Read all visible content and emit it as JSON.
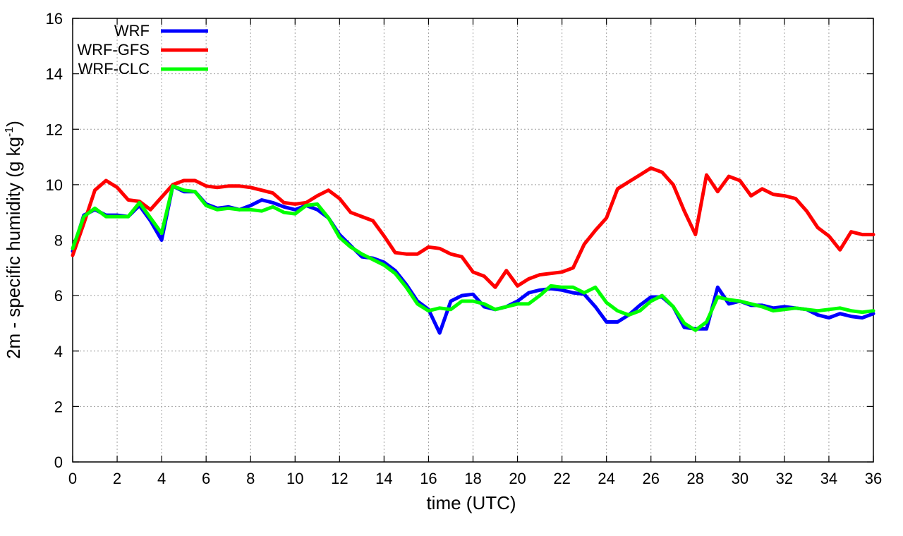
{
  "chart_data": {
    "type": "line",
    "xlabel": "time (UTC)",
    "ylabel_main": "2m - specific humidity (g kg",
    "ylabel_sup": "-1",
    "ylabel_close": ")",
    "xlim": [
      0,
      36
    ],
    "ylim": [
      0,
      16
    ],
    "xticks": [
      0,
      2,
      4,
      6,
      8,
      10,
      12,
      14,
      16,
      18,
      20,
      22,
      24,
      26,
      28,
      30,
      32,
      34,
      36
    ],
    "yticks": [
      0,
      2,
      4,
      6,
      8,
      10,
      12,
      14,
      16
    ],
    "grid": true,
    "legend_position": "top-left",
    "series": [
      {
        "name": "WRF",
        "color": "#0000ff",
        "x": [
          0,
          0.5,
          1,
          1.5,
          2,
          2.5,
          3,
          3.5,
          4,
          4.5,
          5,
          5.5,
          6,
          6.5,
          7,
          7.5,
          8,
          8.5,
          9,
          9.5,
          10,
          10.5,
          11,
          11.5,
          12,
          12.5,
          13,
          13.5,
          14,
          14.5,
          15,
          15.5,
          16,
          16.5,
          17,
          17.5,
          18,
          18.5,
          19,
          19.5,
          20,
          20.5,
          21,
          21.5,
          22,
          22.5,
          23,
          23.5,
          24,
          24.5,
          25,
          25.5,
          26,
          26.5,
          27,
          27.5,
          28,
          28.5,
          29,
          29.5,
          30,
          30.5,
          31,
          31.5,
          32,
          32.5,
          33,
          33.5,
          34,
          34.5,
          35,
          35.5,
          36
        ],
        "y": [
          7.6,
          8.9,
          9.1,
          8.9,
          8.9,
          8.85,
          9.25,
          8.7,
          8.0,
          9.95,
          9.75,
          9.75,
          9.3,
          9.15,
          9.2,
          9.1,
          9.25,
          9.45,
          9.35,
          9.2,
          9.1,
          9.25,
          9.1,
          8.8,
          8.2,
          7.8,
          7.4,
          7.35,
          7.2,
          6.9,
          6.4,
          5.8,
          5.5,
          4.65,
          5.8,
          6.0,
          6.05,
          5.6,
          5.5,
          5.6,
          5.8,
          6.1,
          6.2,
          6.25,
          6.2,
          6.1,
          6.05,
          5.6,
          5.05,
          5.05,
          5.3,
          5.65,
          5.95,
          5.95,
          5.6,
          4.85,
          4.8,
          4.8,
          6.3,
          5.7,
          5.8,
          5.65,
          5.65,
          5.55,
          5.6,
          5.55,
          5.5,
          5.3,
          5.2,
          5.35,
          5.25,
          5.2,
          5.35
        ]
      },
      {
        "name": "WRF-GFS",
        "color": "#ff0000",
        "x": [
          0,
          0.5,
          1,
          1.5,
          2,
          2.5,
          3,
          3.5,
          4,
          4.5,
          5,
          5.5,
          6,
          6.5,
          7,
          7.5,
          8,
          8.5,
          9,
          9.5,
          10,
          10.5,
          11,
          11.5,
          12,
          12.5,
          13,
          13.5,
          14,
          14.5,
          15,
          15.5,
          16,
          16.5,
          17,
          17.5,
          18,
          18.5,
          19,
          19.5,
          20,
          20.5,
          21,
          21.5,
          22,
          22.5,
          23,
          23.5,
          24,
          24.5,
          25,
          25.5,
          26,
          26.5,
          27,
          27.5,
          28,
          28.5,
          29,
          29.5,
          30,
          30.5,
          31,
          31.5,
          32,
          32.5,
          33,
          33.5,
          34,
          34.5,
          35,
          35.5,
          36
        ],
        "y": [
          7.45,
          8.6,
          9.8,
          10.15,
          9.9,
          9.45,
          9.4,
          9.1,
          9.55,
          10.0,
          10.15,
          10.15,
          9.95,
          9.9,
          9.95,
          9.95,
          9.9,
          9.8,
          9.7,
          9.35,
          9.3,
          9.35,
          9.6,
          9.8,
          9.5,
          9.0,
          8.85,
          8.7,
          8.15,
          7.55,
          7.5,
          7.5,
          7.75,
          7.7,
          7.5,
          7.4,
          6.85,
          6.7,
          6.3,
          6.9,
          6.35,
          6.6,
          6.75,
          6.8,
          6.85,
          7.0,
          7.85,
          8.35,
          8.8,
          9.85,
          10.1,
          10.35,
          10.6,
          10.45,
          10.0,
          9.05,
          8.2,
          10.35,
          9.75,
          10.3,
          10.15,
          9.6,
          9.85,
          9.65,
          9.6,
          9.5,
          9.05,
          8.45,
          8.15,
          7.65,
          8.3,
          8.2,
          8.2
        ]
      },
      {
        "name": "WRF-CLC",
        "color": "#00ff00",
        "x": [
          0,
          0.5,
          1,
          1.5,
          2,
          2.5,
          3,
          3.5,
          4,
          4.5,
          5,
          5.5,
          6,
          6.5,
          7,
          7.5,
          8,
          8.5,
          9,
          9.5,
          10,
          10.5,
          11,
          11.5,
          12,
          12.5,
          13,
          13.5,
          14,
          14.5,
          15,
          15.5,
          16,
          16.5,
          17,
          17.5,
          18,
          18.5,
          19,
          19.5,
          20,
          20.5,
          21,
          21.5,
          22,
          22.5,
          23,
          23.5,
          24,
          24.5,
          25,
          25.5,
          26,
          26.5,
          27,
          27.5,
          28,
          28.5,
          29,
          29.5,
          30,
          30.5,
          31,
          31.5,
          32,
          32.5,
          33,
          33.5,
          34,
          34.5,
          35,
          35.5,
          36
        ],
        "y": [
          7.7,
          8.85,
          9.15,
          8.85,
          8.85,
          8.85,
          9.35,
          8.8,
          8.25,
          9.95,
          9.8,
          9.75,
          9.25,
          9.1,
          9.15,
          9.1,
          9.1,
          9.05,
          9.2,
          9.0,
          8.95,
          9.25,
          9.3,
          8.8,
          8.1,
          7.75,
          7.5,
          7.3,
          7.1,
          6.8,
          6.3,
          5.7,
          5.45,
          5.55,
          5.5,
          5.8,
          5.8,
          5.7,
          5.5,
          5.6,
          5.7,
          5.7,
          6.0,
          6.35,
          6.3,
          6.3,
          6.1,
          6.3,
          5.75,
          5.45,
          5.3,
          5.45,
          5.8,
          6.0,
          5.6,
          5.0,
          4.75,
          5.05,
          5.95,
          5.85,
          5.8,
          5.7,
          5.6,
          5.45,
          5.5,
          5.55,
          5.5,
          5.45,
          5.5,
          5.55,
          5.45,
          5.4,
          5.45
        ]
      }
    ]
  }
}
